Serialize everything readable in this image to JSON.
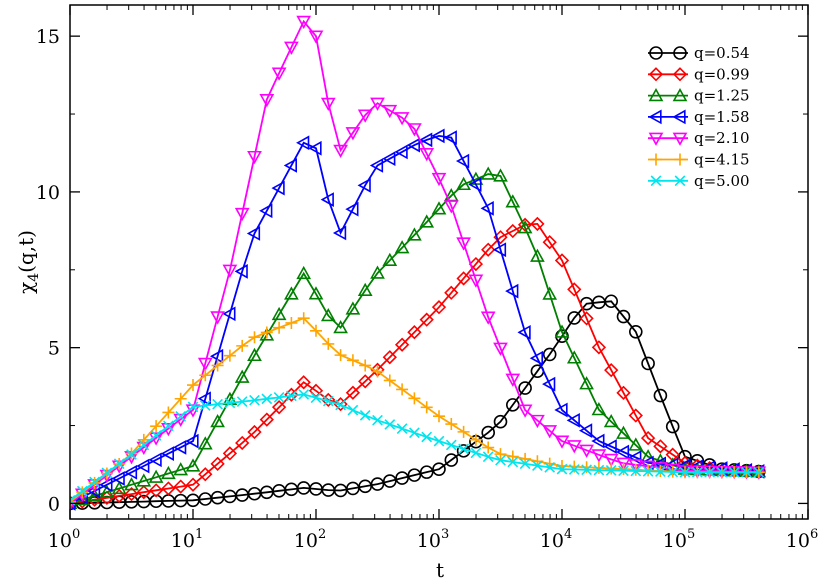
{
  "chart_data": {
    "type": "line",
    "x_scale": "log",
    "xlim": [
      1,
      1000000
    ],
    "ylim": [
      -0.5,
      16
    ],
    "xlabel": "t",
    "ylabel": "χ4(q,t)",
    "ylabel_parts": {
      "base": "χ",
      "sub": "4",
      "rest": "(q,t)"
    },
    "x_ticks": [
      {
        "base": "10",
        "exp": "0"
      },
      {
        "base": "10",
        "exp": "1"
      },
      {
        "base": "10",
        "exp": "2"
      },
      {
        "base": "10",
        "exp": "3"
      },
      {
        "base": "10",
        "exp": "4"
      },
      {
        "base": "10",
        "exp": "5"
      },
      {
        "base": "10",
        "exp": "6"
      }
    ],
    "y_ticks": [
      "0",
      "5",
      "10",
      "15"
    ],
    "legend_position": "top-right",
    "series": [
      {
        "name": "q=0.54",
        "color": "#000000",
        "marker": "circle",
        "x": [
          1,
          10,
          30,
          80,
          150,
          300,
          1000,
          3000,
          8000,
          15000,
          25000,
          40000,
          70000,
          100000,
          200000,
          500000
        ],
        "y": [
          0.0,
          0.1,
          0.3,
          0.5,
          0.4,
          0.6,
          1.1,
          2.5,
          4.8,
          6.4,
          6.5,
          5.5,
          3.0,
          1.5,
          1.1,
          1.0
        ]
      },
      {
        "name": "q=0.99",
        "color": "#ff0000",
        "marker": "diamond",
        "x": [
          1,
          10,
          30,
          80,
          150,
          300,
          1000,
          3000,
          6000,
          10000,
          20000,
          50000,
          100000,
          200000,
          500000
        ],
        "y": [
          0.0,
          0.6,
          2.2,
          3.9,
          3.1,
          4.2,
          6.3,
          8.5,
          9.1,
          7.8,
          5.0,
          2.1,
          1.3,
          1.05,
          1.0
        ]
      },
      {
        "name": "q=1.25",
        "color": "#008000",
        "marker": "triangle-up",
        "x": [
          1,
          10,
          30,
          80,
          150,
          300,
          700,
          1500,
          3000,
          6000,
          10000,
          20000,
          50000,
          100000,
          500000
        ],
        "y": [
          0.0,
          1.2,
          4.6,
          7.4,
          5.5,
          7.3,
          8.8,
          10.2,
          10.7,
          8.2,
          5.5,
          3.0,
          1.5,
          1.1,
          1.0
        ]
      },
      {
        "name": "q=1.58",
        "color": "#0000ff",
        "marker": "triangle-left",
        "x": [
          1,
          10,
          30,
          80,
          100,
          150,
          300,
          700,
          1200,
          2500,
          5000,
          10000,
          20000,
          50000,
          500000
        ],
        "y": [
          0.0,
          2.0,
          8.5,
          11.6,
          11.4,
          8.5,
          10.8,
          11.6,
          11.9,
          9.5,
          5.5,
          3.0,
          2.0,
          1.3,
          1.0
        ]
      },
      {
        "name": "q=2.10",
        "color": "#ff00ff",
        "marker": "triangle-down",
        "x": [
          1,
          10,
          20,
          40,
          80,
          100,
          150,
          300,
          600,
          1200,
          2500,
          5000,
          10000,
          30000,
          100000,
          500000
        ],
        "y": [
          0.0,
          3.0,
          7.5,
          13.0,
          15.5,
          15.0,
          11.2,
          12.9,
          12.2,
          9.8,
          6.0,
          3.0,
          2.0,
          1.3,
          1.05,
          1.0
        ]
      },
      {
        "name": "q=4.15",
        "color": "#ffa500",
        "marker": "plus",
        "x": [
          1,
          3,
          10,
          30,
          80,
          150,
          300,
          1000,
          3000,
          10000,
          100000,
          500000
        ],
        "y": [
          0.05,
          1.5,
          3.8,
          5.3,
          5.95,
          4.8,
          4.3,
          2.8,
          1.6,
          1.2,
          1.0,
          1.0
        ]
      },
      {
        "name": "q=5.00",
        "color": "#00e5ee",
        "marker": "cross",
        "x": [
          1,
          3,
          10,
          30,
          80,
          150,
          300,
          1000,
          3000,
          10000,
          100000,
          500000
        ],
        "y": [
          0.1,
          1.5,
          3.1,
          3.3,
          3.5,
          3.2,
          2.7,
          2.0,
          1.4,
          1.1,
          1.0,
          1.0
        ]
      }
    ]
  }
}
